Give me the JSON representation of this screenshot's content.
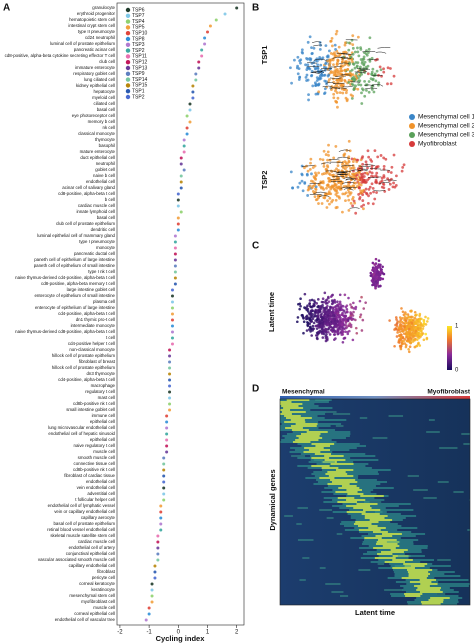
{
  "chart_data": {
    "type": "scatter",
    "panel_label": "A",
    "x_label": "Cycling index",
    "categories": [
      "granulocyte",
      "erythroid progenitor",
      "hematopoietic stem cell",
      "intestinal crypt stem cell",
      "type II pneumocyte",
      "cd24 neutrophil",
      "luminal cell of prostate epithelium",
      "pancreatic acinar cell",
      "cd8-positive, alpha-beta cytokine secreting effector T cell",
      "club cell",
      "immature enterocyte",
      "respiratory goblet cell",
      "lung ciliated cell",
      "kidney epithelial cell",
      "hepatocyte",
      "myeloid cell",
      "ciliated cell",
      "basal cell",
      "eye photoreceptor cell",
      "memory b cell",
      "nk cell",
      "classical monocyte",
      "thymocyte",
      "basophil",
      "mature enterocyte",
      "duct epithelial cell",
      "neutrophil",
      "goblet cell",
      "naive b cell",
      "endothelial cell",
      "acinar cell of salivary gland",
      "cd8-positive, alpha-beta t cell",
      "b cell",
      "cardiac muscle cell",
      "innate lymphoid cell",
      "basal cell",
      "club cell of prostate epithelium",
      "dendritic cell",
      "luminal epithelial cell of mammary gland",
      "type I pneumocyte",
      "monocyte",
      "pancreatic ductal cell",
      "paneth cell of epithelium of large intestine",
      "paneth cell of epithelium of small intestine",
      "type I nk t cell",
      "naive thymus-derived cd4-positive, alpha-beta t cell",
      "cd8-positive, alpha-beta memory t cell",
      "large intestine goblet cell",
      "enterocyte of epithelium of small intestine",
      "plasma cell",
      "enterocyte of epithelium of large intestine",
      "cd4-positive, alpha-beta t cell",
      "dn1 thymic pro-t cell",
      "intermediate monocyte",
      "naive thymus-derived cd8-positive, alpha-beta t cell",
      "t cell",
      "cd4-positive helper t cell",
      "non-classical monocyte",
      "hillock cell of prostate epithelium",
      "fibroblast of breast",
      "hillock cell of prostate epithelium",
      "dn3 thymocyte",
      "cd4-positive, alpha-beta t cell",
      "macrophage",
      "regulatory t cell",
      "mast cell",
      "cd8b-positive nk t cell",
      "small intestine goblet cell",
      "immune cell",
      "epithelial cell",
      "lung microvascular endothelial cell",
      "endothelial cell of hepatic sinusoid",
      "epithelial cell",
      "naive regulatory t cell",
      "muscle cell",
      "smooth muscle cell",
      "connective tissue cell",
      "cd8b-positive nk t cell",
      "fibroblast of cardiac tissue",
      "endothelial cell",
      "vein endothelial cell",
      "adventitial cell",
      "t follicular helper cell",
      "endothelial cell of lymphatic vessel",
      "vein or capillary endothelial cell",
      "capillary aerocyte",
      "basal cell of prostate epithelium",
      "retinal blood vessel endothelial cell",
      "skeletal muscle satellite stem cell",
      "cardiac muscle cell",
      "endothelial cell of artery",
      "conjunctival epithelial cell",
      "vascular associated smooth muscle cell",
      "capillary endothelial cell",
      "fibroblast",
      "pericyte cell",
      "corneal keratocyte",
      "keratinocyte",
      "mesenchymal stem cell",
      "myofibroblast cell",
      "muscle cell",
      "corneal epithelial cell",
      "endothelial cell of vascular tree"
    ],
    "values": [
      2.0,
      1.6,
      1.3,
      1.1,
      1.0,
      0.9,
      0.9,
      0.8,
      0.8,
      0.7,
      0.7,
      0.6,
      0.6,
      0.5,
      0.5,
      0.5,
      0.4,
      0.4,
      0.3,
      0.4,
      0.3,
      0.3,
      0.2,
      0.2,
      0.2,
      0.1,
      0.1,
      0.2,
      0.1,
      0.1,
      0.1,
      0.0,
      0.0,
      0.0,
      0.1,
      0.0,
      0.0,
      0.0,
      -0.1,
      -0.1,
      -0.1,
      -0.1,
      -0.1,
      -0.1,
      -0.1,
      -0.1,
      -0.1,
      -0.2,
      -0.2,
      -0.2,
      -0.2,
      -0.2,
      -0.2,
      -0.2,
      -0.2,
      -0.2,
      -0.2,
      -0.3,
      -0.3,
      -0.3,
      -0.3,
      -0.3,
      -0.3,
      -0.3,
      -0.3,
      -0.3,
      -0.3,
      -0.3,
      -0.4,
      -0.4,
      -0.4,
      -0.4,
      -0.4,
      -0.4,
      -0.4,
      -0.5,
      -0.5,
      -0.5,
      -0.5,
      -0.5,
      -0.5,
      -0.5,
      -0.5,
      -0.6,
      -0.6,
      -0.6,
      -0.6,
      -0.6,
      -0.7,
      -0.7,
      -0.7,
      -0.7,
      -0.7,
      -0.8,
      -0.8,
      -0.8,
      -0.9,
      -0.9,
      -0.9,
      -0.9,
      -1.0,
      -1.0,
      -1.1
    ],
    "series": [
      {
        "name": "TSP6",
        "color": "#1f3b2a"
      },
      {
        "name": "TSP7",
        "color": "#7fc8e8"
      },
      {
        "name": "TSP4",
        "color": "#8fd16f"
      },
      {
        "name": "TSP5",
        "color": "#f2a03d"
      },
      {
        "name": "TSP10",
        "color": "#e0453a"
      },
      {
        "name": "TSP8",
        "color": "#2f8fd8"
      },
      {
        "name": "TSP3",
        "color": "#b07ad0"
      },
      {
        "name": "TSP2",
        "color": "#3aa8a0"
      },
      {
        "name": "TSP11",
        "color": "#e86fb0"
      },
      {
        "name": "TSP12",
        "color": "#c2185b"
      },
      {
        "name": "TSP13",
        "color": "#6a3d9a"
      },
      {
        "name": "TSP9",
        "color": "#5e7fc0"
      },
      {
        "name": "TSP14",
        "color": "#76c7a0"
      },
      {
        "name": "TSP15",
        "color": "#b8860b"
      },
      {
        "name": "TSP1",
        "color": "#2a5ab0"
      },
      {
        "name": "TSP2",
        "color": "#4a6ad0"
      }
    ],
    "xlim": [
      -2.1,
      2.25
    ],
    "xticks": [
      -2,
      -1,
      0,
      1,
      2
    ]
  },
  "panels": {
    "b": {
      "label": "B",
      "groups": [
        "TSP1",
        "TSP2"
      ],
      "legend": [
        {
          "name": "Mesenchymal cell 1",
          "color": "#3a86c8"
        },
        {
          "name": "Mesenchymal cell 2",
          "color": "#f0932b"
        },
        {
          "name": "Mesenchymal cell 3",
          "color": "#5aa05a"
        },
        {
          "name": "Myofibroblast",
          "color": "#d63a3a"
        }
      ]
    },
    "c": {
      "label": "C",
      "y_label": "Latent time",
      "colorbar_ticks": [
        0,
        1
      ]
    },
    "d": {
      "label": "D",
      "start_label": "Mesenchymal",
      "end_label": "Myofibroblast",
      "y_label": "Dynamical genes",
      "x_label": "Latent time"
    }
  }
}
